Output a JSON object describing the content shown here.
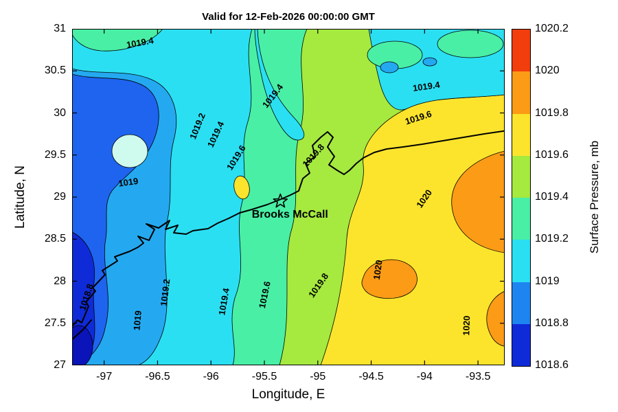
{
  "title": "Valid for 12-Feb-2026 00:00:00 GMT",
  "axes": {
    "xlabel": "Longitude, E",
    "ylabel": "Latitude, N",
    "x_ticks": [
      "-97",
      "-96.5",
      "-96",
      "-95.5",
      "-95",
      "-94.5",
      "-94",
      "-93.5"
    ],
    "y_ticks": [
      "31",
      "30.5",
      "30",
      "29.5",
      "29",
      "28.5",
      "28",
      "27.5",
      "27"
    ],
    "x_range": [
      -97.3,
      -93.25
    ],
    "y_range": [
      27,
      31
    ]
  },
  "colorbar": {
    "label": "Surface Pressure, mb",
    "ticks_top_to_bottom": [
      "1020.2",
      "1020",
      "1019.8",
      "1019.6",
      "1019.4",
      "1019.2",
      "1019",
      "1018.8",
      "1018.6"
    ],
    "colors_top_to_bottom": [
      "#F23D0C",
      "#FB9B16",
      "#FCE42C",
      "#A6E93F",
      "#49EFA5",
      "#2BDFF2",
      "#1E85F0",
      "#0F2BD8"
    ]
  },
  "annotation": {
    "label": "Brooks McCall",
    "lon": -95.35,
    "lat": 28.95
  },
  "map": {
    "band_colors_low_to_high": [
      "#0F2BD8",
      "#1E64EE",
      "#24A9F0",
      "#2BDFF2",
      "#49EFA5",
      "#A6E93F",
      "#FCE42C",
      "#FB9B16"
    ],
    "extra_colors": {
      "pale_spot": "#CFFBEE",
      "deep_core": "#0A14B8"
    }
  },
  "chart_data": {
    "type": "heatmap",
    "subtype": "filled-contour-map",
    "title": "Valid for 12-Feb-2026 00:00:00 GMT",
    "xlabel": "Longitude, E",
    "ylabel": "Latitude, N",
    "xlim": [
      -97.3,
      -93.25
    ],
    "ylim": [
      27,
      31
    ],
    "value_label": "Surface Pressure, mb",
    "value_range": [
      1018.6,
      1020.2
    ],
    "contour_interval_mb": 0.2,
    "contour_levels": [
      1018.8,
      1019,
      1019.2,
      1019.4,
      1019.6,
      1019.8,
      1020
    ],
    "pattern": "Pressure lowest (~1018.6-1018.8 mb, deep blue) in the southwest corner near -97.3E 27-28.5N, rising northeastward through 1019-1019.6 mb bands mid-domain, to a broad 1019.8-1020 mb yellow area east of about -95E, with >1020 mb orange cells along the eastern edge near -93.5E and near -94.5E 28N; Gulf coast shoreline with Matagorda and Galveston bays crosses the domain diagonally.",
    "contour_labels": [
      {
        "text": "1019.4",
        "lon": -96.66,
        "lat": 30.8,
        "rot": -10
      },
      {
        "text": "1019.4",
        "lon": -95.4,
        "lat": 30.18,
        "rot": -52
      },
      {
        "text": "1019.4",
        "lon": -93.98,
        "lat": 30.28,
        "rot": -8
      },
      {
        "text": "1019.2",
        "lon": -96.1,
        "lat": 29.83,
        "rot": -68
      },
      {
        "text": "1019.4",
        "lon": -95.93,
        "lat": 29.73,
        "rot": -65
      },
      {
        "text": "1019.6",
        "lon": -95.74,
        "lat": 29.45,
        "rot": -58
      },
      {
        "text": "1019.6",
        "lon": -94.05,
        "lat": 29.91,
        "rot": -18
      },
      {
        "text": "1019.8",
        "lon": -95.02,
        "lat": 29.47,
        "rot": -48
      },
      {
        "text": "1019",
        "lon": -96.77,
        "lat": 29.14,
        "rot": -8
      },
      {
        "text": "1020",
        "lon": -93.98,
        "lat": 28.96,
        "rot": -55
      },
      {
        "text": "1018.8",
        "lon": -97.14,
        "lat": 27.8,
        "rot": -72
      },
      {
        "text": "1019",
        "lon": -96.66,
        "lat": 27.53,
        "rot": -85
      },
      {
        "text": "1019.2",
        "lon": -96.4,
        "lat": 27.86,
        "rot": -83
      },
      {
        "text": "1019.4",
        "lon": -95.85,
        "lat": 27.75,
        "rot": -80
      },
      {
        "text": "1019.6",
        "lon": -95.47,
        "lat": 27.83,
        "rot": -78
      },
      {
        "text": "1019.8",
        "lon": -94.97,
        "lat": 27.93,
        "rot": -55
      },
      {
        "text": "1020",
        "lon": -94.41,
        "lat": 28.13,
        "rot": -82
      },
      {
        "text": "1020",
        "lon": -93.58,
        "lat": 27.47,
        "rot": -88
      }
    ],
    "station": {
      "name": "Brooks McCall",
      "lon": -95.35,
      "lat": 28.95
    }
  }
}
